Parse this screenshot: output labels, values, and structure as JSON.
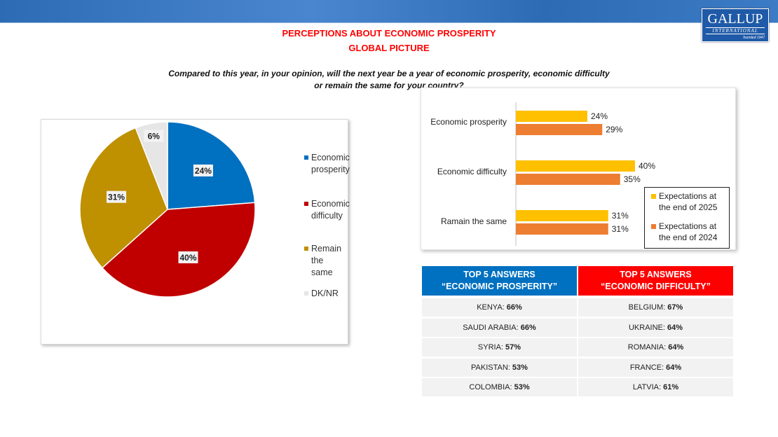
{
  "header": {
    "logo_text": "GALLUP",
    "logo_sub": "INTERNATIONAL",
    "logo_founded": "founded 1947",
    "title_line1": "PERCEPTIONS ABOUT ECONOMIC PROSPERITY",
    "title_line2": "GLOBAL PICTURE",
    "question": "Compared to this year, in your opinion, will the next year be a year of economic prosperity, economic difficulty or remain the same for your country?"
  },
  "chart_data": [
    {
      "type": "pie",
      "labels": [
        "Economic prosperity",
        "Economic difficulty",
        "Remain the same",
        "DK/NR"
      ],
      "values": [
        24,
        40,
        31,
        6
      ],
      "data_labels": [
        "24%",
        "40%",
        "31%",
        "6%"
      ],
      "colors": [
        "#0070c0",
        "#c00000",
        "#bf9000",
        "#e7e6e6"
      ],
      "legend_lines": [
        [
          "Economic",
          "prosperity"
        ],
        [
          "Economic",
          "difficulty"
        ],
        [
          "Remain the",
          "same"
        ],
        [
          "DK/NR"
        ]
      ],
      "legend_position": "right"
    },
    {
      "type": "bar",
      "orientation": "horizontal",
      "categories": [
        "Economic prosperity",
        "Economic difficulty",
        "Ramain the same"
      ],
      "series": [
        {
          "name": "Expectations at the end of 2025",
          "legend_lines": [
            "Expectations at",
            "the end of 2025"
          ],
          "values": [
            24,
            40,
            31
          ],
          "color": "#ffc000"
        },
        {
          "name": "Expectations at the end of 2024",
          "legend_lines": [
            "Expectations at",
            "the end of 2024"
          ],
          "values": [
            29,
            35,
            31
          ],
          "color": "#ed7d31"
        }
      ],
      "xlim": [
        0,
        70
      ],
      "legend_position": "bottom-right"
    }
  ],
  "tables": {
    "prosperity": {
      "header1": "TOP 5 ANSWERS",
      "header2": "“ECONOMIC PROSPERITY”",
      "color": "#0070c0",
      "rows": [
        {
          "country": "KENYA:",
          "value": "66%"
        },
        {
          "country": "SAUDI ARABIA:",
          "value": "66%"
        },
        {
          "country": "SYRIA:",
          "value": "57%"
        },
        {
          "country": "PAKISTAN:",
          "value": "53%"
        },
        {
          "country": "COLOMBIA:",
          "value": "53%"
        }
      ]
    },
    "difficulty": {
      "header1": "TOP 5 ANSWERS",
      "header2": "“ECONOMIC DIFFICULTY”",
      "color": "#ff0000",
      "rows": [
        {
          "country": "BELGIUM:",
          "value": "67%"
        },
        {
          "country": "UKRAINE:",
          "value": "64%"
        },
        {
          "country": "ROMANIA:",
          "value": "64%"
        },
        {
          "country": "FRANCE:",
          "value": "64%"
        },
        {
          "country": "LATVIA:",
          "value": "61%"
        }
      ]
    }
  }
}
